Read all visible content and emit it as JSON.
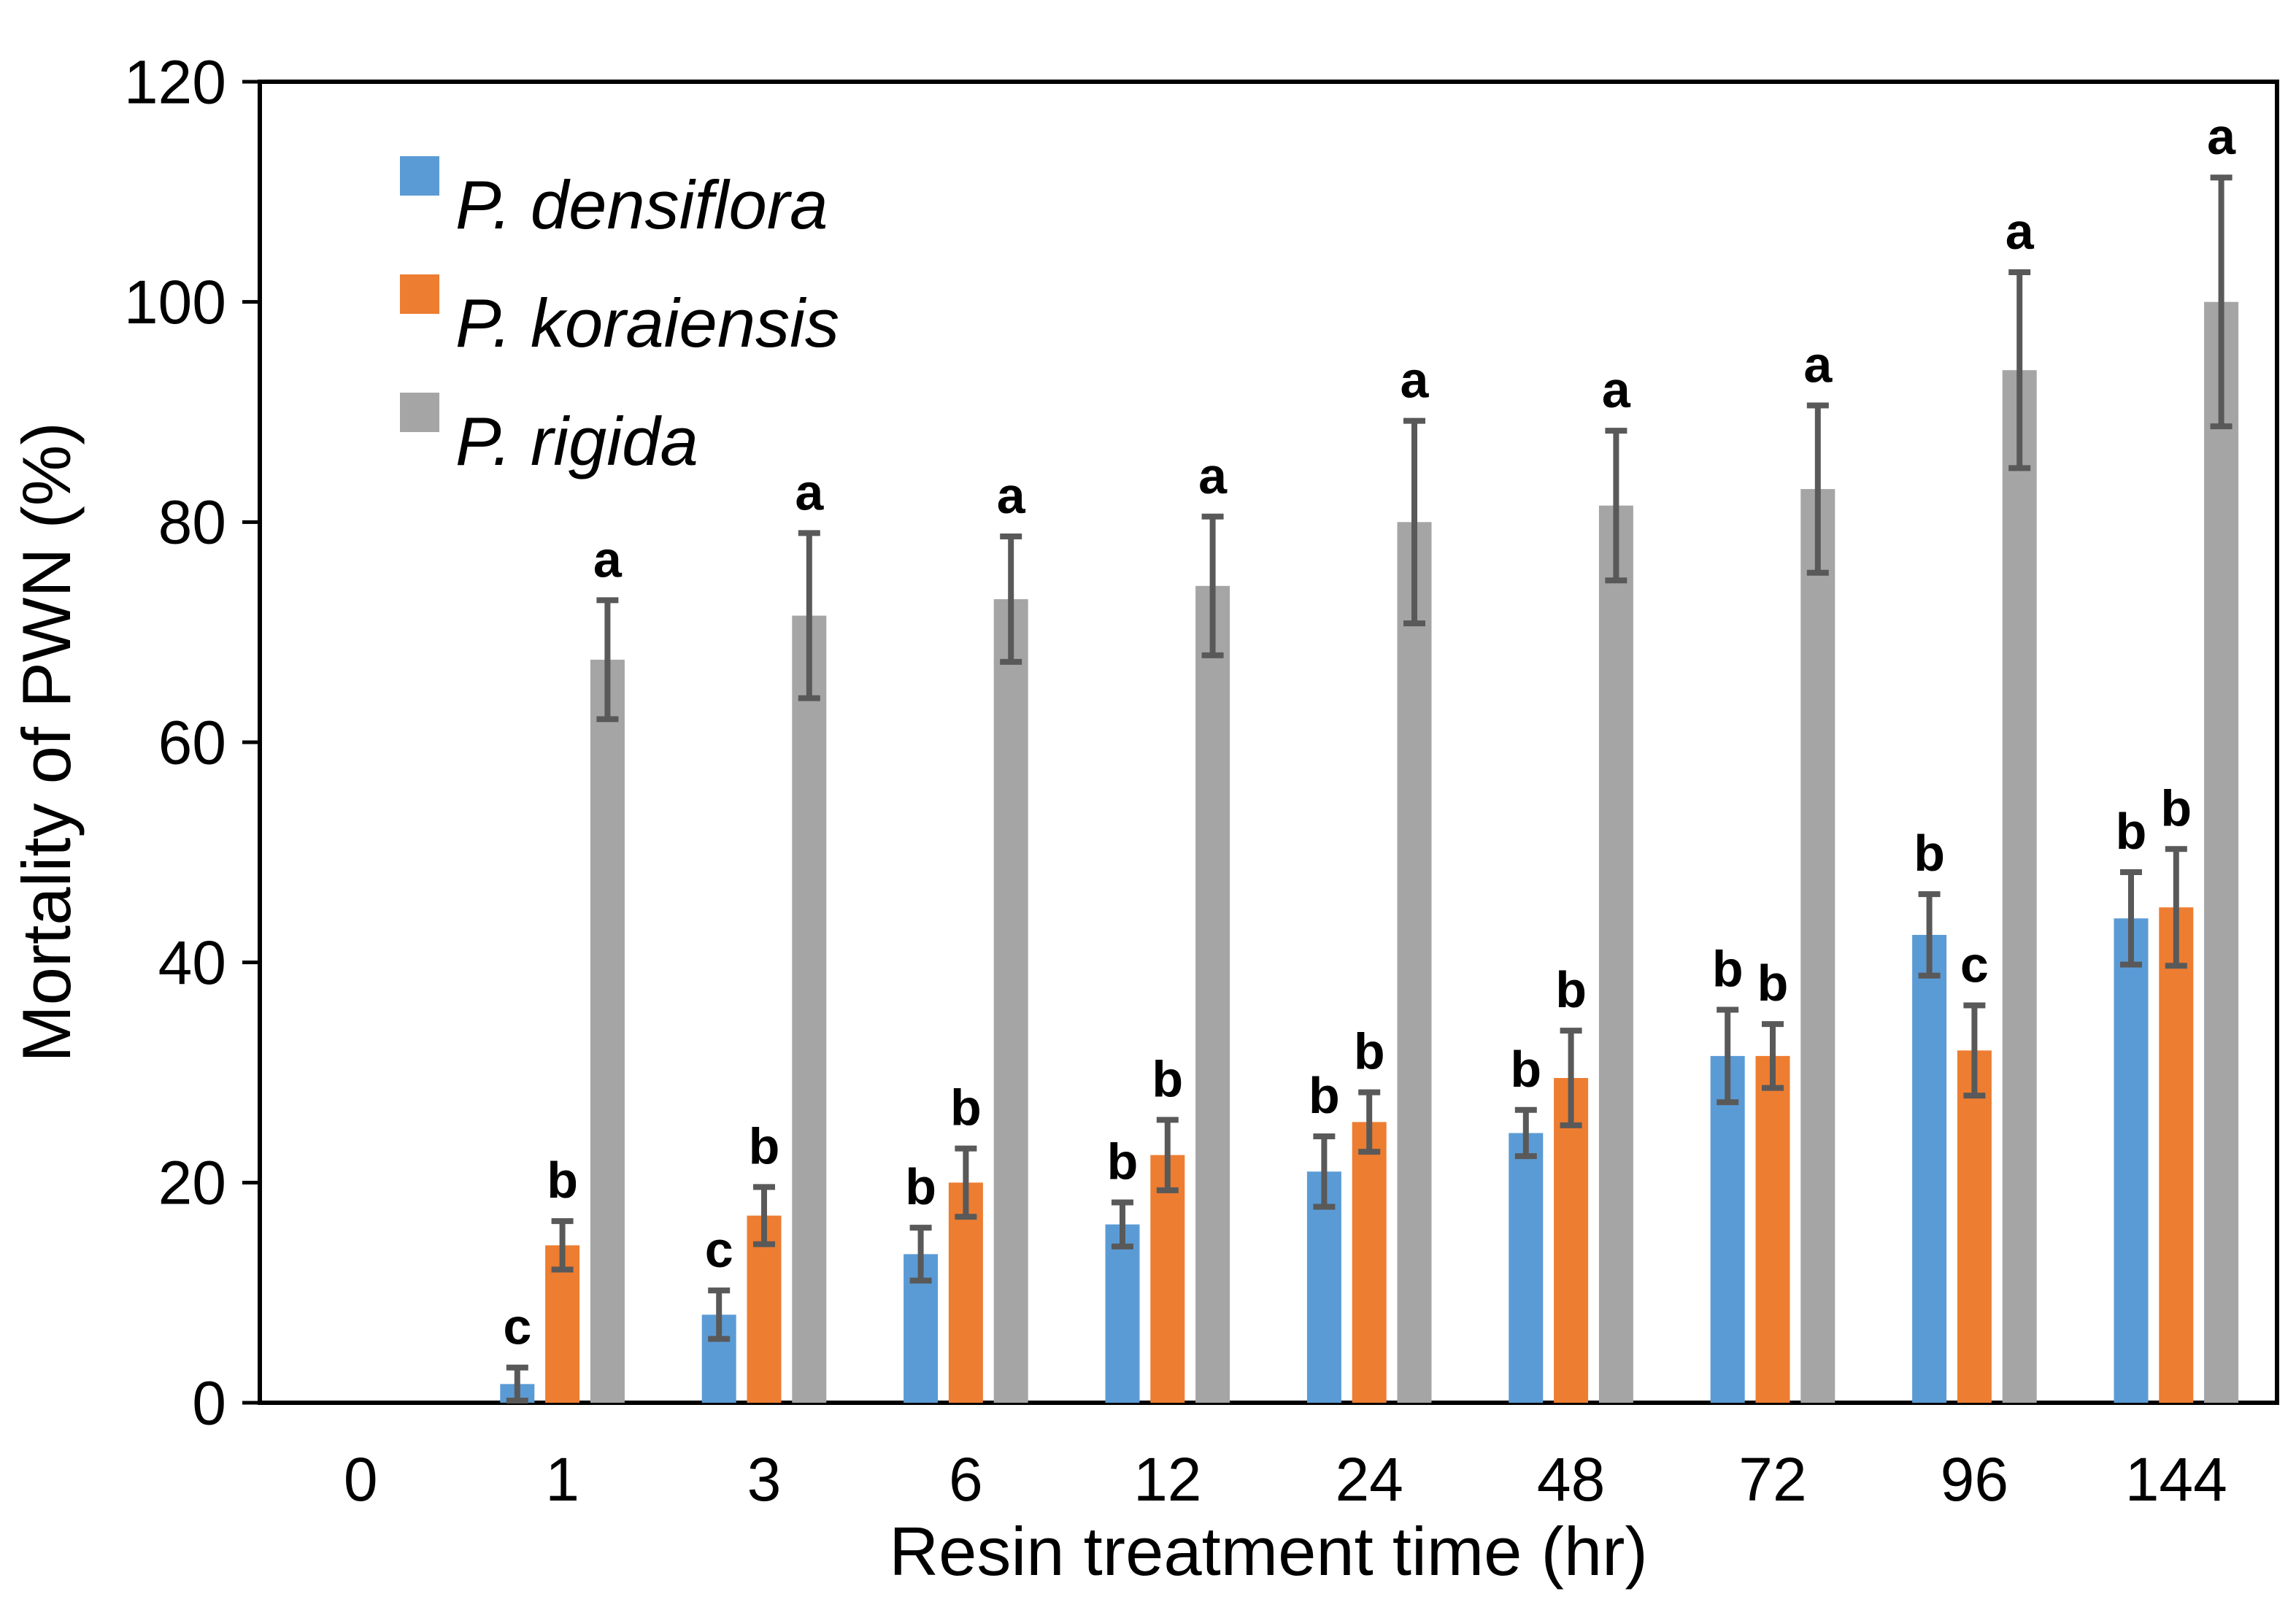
{
  "chart_data": {
    "type": "bar",
    "title": "",
    "xlabel": "Resin treatment time (hr)",
    "ylabel": "Mortality of PWN (%)",
    "ylim": [
      0,
      120
    ],
    "yticks": [
      0,
      20,
      40,
      60,
      80,
      100,
      120
    ],
    "grid": false,
    "legend_position": "inside-top-left",
    "categories": [
      "0",
      "1",
      "3",
      "6",
      "12",
      "24",
      "48",
      "72",
      "96",
      "144"
    ],
    "series": [
      {
        "name": "P. densiflora",
        "color": "#5B9BD5",
        "values": [
          0,
          1.7,
          8.0,
          13.5,
          16.2,
          21.0,
          24.5,
          31.5,
          42.5,
          44.0
        ],
        "errors": [
          0,
          1.5,
          2.2,
          2.4,
          2.0,
          3.2,
          2.1,
          4.2,
          3.7,
          4.2
        ],
        "letters": [
          "",
          "c",
          "c",
          "b",
          "b",
          "b",
          "b",
          "b",
          "b",
          "b"
        ]
      },
      {
        "name": "P. koraiensis",
        "color": "#ED7D31",
        "values": [
          0,
          14.3,
          17.0,
          20.0,
          22.5,
          25.5,
          29.5,
          31.5,
          32.0,
          45.0
        ],
        "errors": [
          0,
          2.2,
          2.6,
          3.1,
          3.2,
          2.7,
          4.3,
          2.9,
          4.1,
          5.3
        ],
        "letters": [
          "",
          "b",
          "b",
          "b",
          "b",
          "b",
          "b",
          "b",
          "c",
          "b"
        ]
      },
      {
        "name": "P. rigida",
        "color": "#A5A5A5",
        "values": [
          0,
          67.5,
          71.5,
          73.0,
          74.2,
          80.0,
          81.5,
          83.0,
          93.8,
          100.0
        ],
        "errors": [
          0,
          5.4,
          7.5,
          5.7,
          6.3,
          9.2,
          6.8,
          7.6,
          8.9,
          11.3
        ],
        "letters": [
          "",
          "a",
          "a",
          "a",
          "a",
          "a",
          "a",
          "a",
          "a",
          "a"
        ]
      }
    ],
    "error_bar_color": "#595959",
    "axis_color": "#000000",
    "x_tick_label_color": "#595959",
    "y_tick_label_color": "#000000"
  }
}
